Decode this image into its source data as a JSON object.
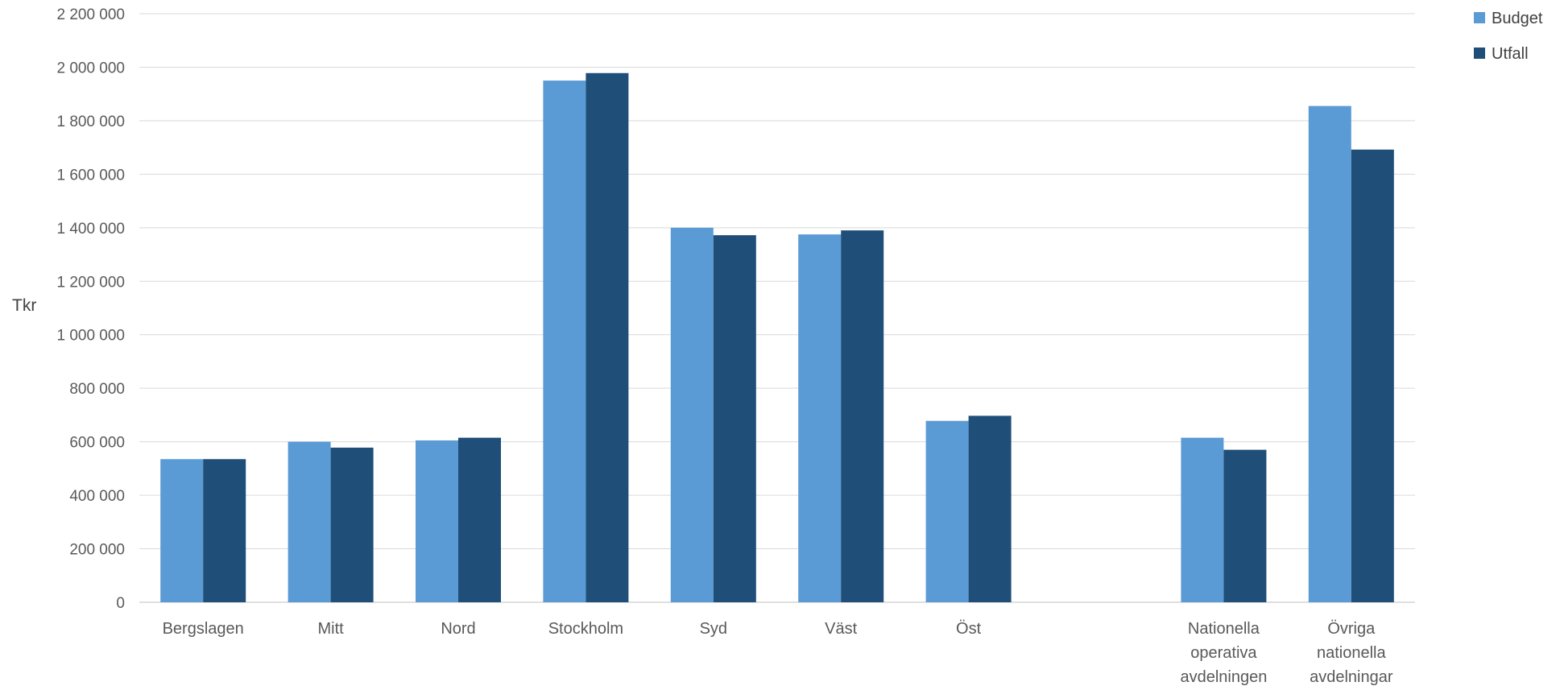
{
  "chart_data": {
    "type": "bar",
    "title": "",
    "xlabel": "",
    "ylabel": "Tkr",
    "ylim": [
      0,
      2200000
    ],
    "yticks": [
      0,
      200000,
      400000,
      600000,
      800000,
      1000000,
      1200000,
      1400000,
      1600000,
      1800000,
      2000000,
      2200000
    ],
    "ytick_labels": [
      "0",
      "200 000",
      "400 000",
      "600 000",
      "800 000",
      "1 000 000",
      "1 200 000",
      "1 400 000",
      "1 600 000",
      "1 800 000",
      "2 000 000",
      "2 200 000"
    ],
    "grid": true,
    "legend_position": "top-right",
    "categories": [
      "Bergslagen",
      "Mitt",
      "Nord",
      "Stockholm",
      "Syd",
      "Väst",
      "Öst",
      "",
      "Nationella operativa avdelningen",
      "Övriga nationella avdelningar"
    ],
    "category_lines": [
      [
        "Bergslagen"
      ],
      [
        "Mitt"
      ],
      [
        "Nord"
      ],
      [
        "Stockholm"
      ],
      [
        "Syd"
      ],
      [
        "Väst"
      ],
      [
        "Öst"
      ],
      [],
      [
        "Nationella",
        "operativa",
        "avdelningen"
      ],
      [
        "Övriga",
        "nationella",
        "avdelningar"
      ]
    ],
    "series": [
      {
        "name": "Budget",
        "color": "#5b9bd5",
        "values": [
          535000,
          600000,
          605000,
          1950000,
          1400000,
          1375000,
          678000,
          null,
          615000,
          1855000
        ]
      },
      {
        "name": "Utfall",
        "color": "#1f4e79",
        "values": [
          535000,
          578000,
          615000,
          1978000,
          1372000,
          1390000,
          697000,
          null,
          570000,
          1692000
        ]
      }
    ]
  }
}
